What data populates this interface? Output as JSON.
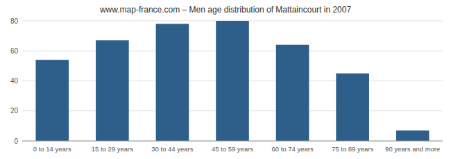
{
  "chart_data": {
    "type": "bar",
    "title": "www.map-france.com – Men age distribution of Mattaincourt in 2007",
    "categories": [
      "0 to 14 years",
      "15 to 29 years",
      "30 to 44 years",
      "45 to 59 years",
      "60 to 74 years",
      "75 to 89 years",
      "90 years and more"
    ],
    "values": [
      54,
      67,
      78,
      80,
      64,
      45,
      7
    ],
    "color": "#2e5f8a",
    "ylim": [
      0,
      80
    ],
    "yticks": [
      0,
      20,
      40,
      60,
      80
    ],
    "grid": true
  }
}
